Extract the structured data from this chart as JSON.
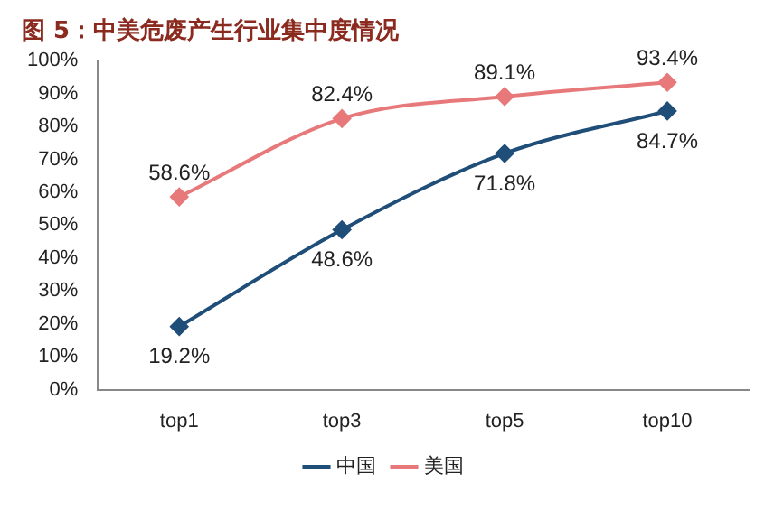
{
  "chart_data": {
    "type": "line",
    "title": "图 5：中美危废产生行业集中度情况",
    "categories": [
      "top1",
      "top3",
      "top5",
      "top10"
    ],
    "series": [
      {
        "name": "中国",
        "color": "#1f4e79",
        "values": [
          19.2,
          48.6,
          71.8,
          84.7
        ],
        "value_labels": [
          "19.2%",
          "48.6%",
          "71.8%",
          "84.7%"
        ]
      },
      {
        "name": "美国",
        "color": "#e8797b",
        "values": [
          58.6,
          82.4,
          89.1,
          93.4
        ],
        "value_labels": [
          "58.6%",
          "82.4%",
          "89.1%",
          "93.4%"
        ]
      }
    ],
    "ylim": [
      0,
      100
    ],
    "yticks": [
      {
        "value": 0,
        "label": "0%"
      },
      {
        "value": 10,
        "label": "10%"
      },
      {
        "value": 20,
        "label": "20%"
      },
      {
        "value": 30,
        "label": "30%"
      },
      {
        "value": 40,
        "label": "40%"
      },
      {
        "value": 50,
        "label": "50%"
      },
      {
        "value": 60,
        "label": "60%"
      },
      {
        "value": 70,
        "label": "70%"
      },
      {
        "value": 80,
        "label": "80%"
      },
      {
        "value": 90,
        "label": "90%"
      },
      {
        "value": 100,
        "label": "100%"
      }
    ],
    "grid": false,
    "legend": "bottom",
    "marker": "diamond",
    "line_style": "solid"
  }
}
